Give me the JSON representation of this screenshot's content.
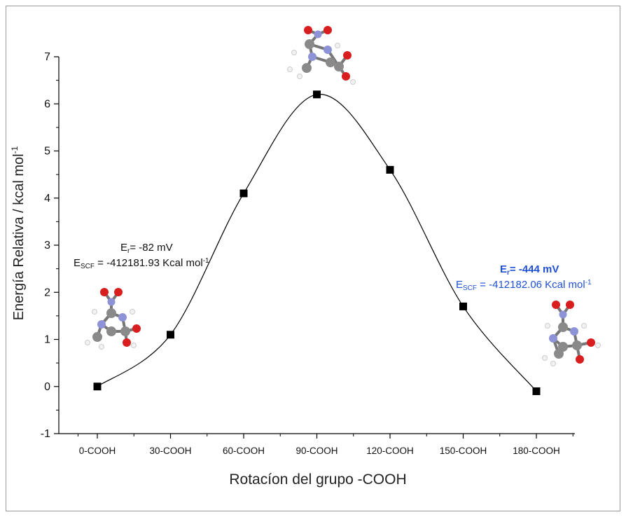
{
  "chart_data": {
    "type": "line",
    "xlabel": "Rotacíon del grupo -COOH",
    "ylabel_main": "Energía Relativa / kcal mol",
    "ylabel_sup": "-1",
    "categories": [
      "0-COOH",
      "30-COOH",
      "60-COOH",
      "90-COOH",
      "120-COOH",
      "150-COOH",
      "180-COOH"
    ],
    "series": [
      {
        "values": [
          0.0,
          1.1,
          4.1,
          6.2,
          4.6,
          1.7,
          -0.1
        ]
      }
    ],
    "ylim": [
      -1,
      7
    ],
    "yticks": [
      "-1",
      "0",
      "1",
      "2",
      "3",
      "4",
      "5",
      "6",
      "7"
    ],
    "marker": "square",
    "smooth": true,
    "colors": {
      "line": "#000000",
      "marker": "#000000"
    }
  },
  "annotations": {
    "left": {
      "er_prefix": "E",
      "er_sub": "r",
      "er_value": "= -82 mV",
      "escf_prefix": "E",
      "escf_sub": "SCF",
      "escf_value": " = -412181.93 Kcal mol",
      "escf_sup": "-1",
      "color": "#111111"
    },
    "right": {
      "er_prefix": "E",
      "er_sub": "r",
      "er_value": "= -444 mV",
      "escf_prefix": "E",
      "escf_sub": "SCF",
      "escf_value": " = -412182.06 Kcal mol",
      "escf_sup": "-1",
      "color": "#1f4fd6"
    }
  }
}
